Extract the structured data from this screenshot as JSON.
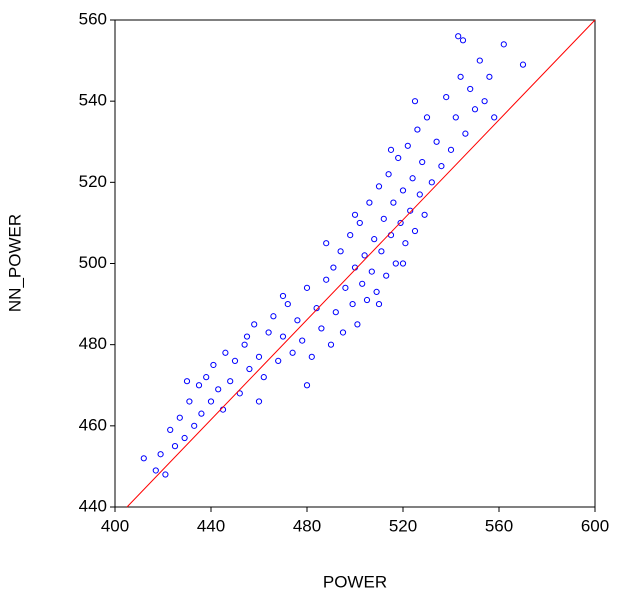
{
  "chart_data": {
    "type": "scatter",
    "xlabel": "POWER",
    "ylabel": "NN_POWER",
    "xlim": [
      400,
      600
    ],
    "ylim": [
      440,
      560
    ],
    "xticks": [
      400,
      440,
      480,
      520,
      560,
      600
    ],
    "yticks": [
      440,
      460,
      480,
      500,
      520,
      540,
      560
    ],
    "series": [
      {
        "color": "#0000ff",
        "x": [
          412,
          417,
          419,
          421,
          423,
          425,
          427,
          429,
          431,
          433,
          435,
          436,
          438,
          440,
          441,
          443,
          445,
          446,
          448,
          450,
          452,
          454,
          456,
          458,
          460,
          462,
          464,
          466,
          468,
          470,
          472,
          474,
          476,
          478,
          480,
          482,
          484,
          486,
          488,
          490,
          491,
          492,
          494,
          495,
          496,
          498,
          499,
          500,
          501,
          502,
          503,
          504,
          505,
          506,
          507,
          508,
          509,
          510,
          511,
          512,
          513,
          514,
          515,
          516,
          517,
          518,
          519,
          520,
          521,
          522,
          523,
          524,
          525,
          526,
          527,
          528,
          529,
          530,
          532,
          534,
          536,
          538,
          540,
          542,
          544,
          546,
          548,
          550,
          552,
          554,
          556,
          558,
          562,
          570,
          543,
          545,
          488,
          470,
          455,
          430,
          515,
          525,
          500,
          480,
          460,
          510,
          520
        ],
        "y": [
          452,
          449,
          453,
          448,
          459,
          455,
          462,
          457,
          466,
          460,
          470,
          463,
          472,
          466,
          475,
          469,
          464,
          478,
          471,
          476,
          468,
          480,
          474,
          485,
          477,
          472,
          483,
          487,
          476,
          482,
          490,
          478,
          486,
          481,
          494,
          477,
          489,
          484,
          496,
          480,
          499,
          488,
          503,
          483,
          494,
          507,
          490,
          499,
          485,
          510,
          495,
          502,
          491,
          515,
          498,
          506,
          493,
          519,
          503,
          511,
          497,
          522,
          507,
          515,
          500,
          526,
          510,
          518,
          505,
          529,
          513,
          521,
          508,
          533,
          517,
          525,
          512,
          536,
          520,
          530,
          524,
          541,
          528,
          536,
          546,
          532,
          543,
          538,
          550,
          540,
          546,
          536,
          554,
          549,
          556,
          555,
          505,
          492,
          482,
          471,
          528,
          540,
          512,
          470,
          466,
          490,
          500
        ]
      }
    ],
    "reference_line": {
      "color": "#ff0000",
      "x": [
        405,
        600
      ],
      "y": [
        440,
        560
      ]
    }
  }
}
